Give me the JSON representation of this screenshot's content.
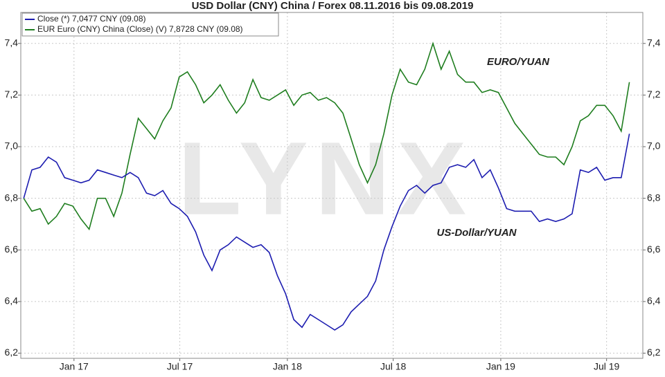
{
  "chart_data": {
    "type": "line",
    "title": "USD Dollar (CNY) China / Forex 08.11.2016 bis 09.08.2019",
    "annotations": [
      "EURO/YUAN",
      "US-Dollar/YUAN"
    ],
    "watermark": "LYNX",
    "x": [
      "2016-10-07",
      "2016-10-21",
      "2016-11-04",
      "2016-11-18",
      "2016-12-02",
      "2016-12-16",
      "2016-12-30",
      "2017-01-13",
      "2017-01-27",
      "2017-02-10",
      "2017-02-24",
      "2017-03-10",
      "2017-03-24",
      "2017-04-07",
      "2017-04-21",
      "2017-05-05",
      "2017-05-19",
      "2017-06-02",
      "2017-06-16",
      "2017-06-30",
      "2017-07-14",
      "2017-07-28",
      "2017-08-11",
      "2017-08-25",
      "2017-09-08",
      "2017-09-22",
      "2017-10-06",
      "2017-10-20",
      "2017-11-03",
      "2017-11-17",
      "2017-12-01",
      "2017-12-15",
      "2017-12-29",
      "2018-01-12",
      "2018-01-26",
      "2018-02-09",
      "2018-02-23",
      "2018-03-09",
      "2018-03-23",
      "2018-04-06",
      "2018-04-20",
      "2018-05-04",
      "2018-05-18",
      "2018-06-01",
      "2018-06-15",
      "2018-06-29",
      "2018-07-13",
      "2018-07-27",
      "2018-08-10",
      "2018-08-24",
      "2018-09-07",
      "2018-09-21",
      "2018-10-05",
      "2018-10-19",
      "2018-11-02",
      "2018-11-16",
      "2018-11-30",
      "2018-12-14",
      "2018-12-28",
      "2019-01-11",
      "2019-01-25",
      "2019-02-08",
      "2019-02-22",
      "2019-03-08",
      "2019-03-22",
      "2019-04-05",
      "2019-04-19",
      "2019-05-03",
      "2019-05-17",
      "2019-05-31",
      "2019-06-14",
      "2019-06-28",
      "2019-07-12",
      "2019-07-26",
      "2019-08-09"
    ],
    "xlim": [
      "2016-10-02",
      "2019-09-01"
    ],
    "xticks": [
      {
        "value": "2017-01-01",
        "label": "Jan 17"
      },
      {
        "value": "2017-07-01",
        "label": "Jul 17"
      },
      {
        "value": "2018-01-01",
        "label": "Jan 18"
      },
      {
        "value": "2018-07-01",
        "label": "Jul 18"
      },
      {
        "value": "2019-01-01",
        "label": "Jan 19"
      },
      {
        "value": "2019-07-01",
        "label": "Jul 19"
      }
    ],
    "ylim": [
      6.18,
      7.52
    ],
    "yticks": [
      {
        "value": 6.2,
        "label": "6,2"
      },
      {
        "value": 6.4,
        "label": "6,4"
      },
      {
        "value": 6.6,
        "label": "6,6"
      },
      {
        "value": 6.8,
        "label": "6,8"
      },
      {
        "value": 7.0,
        "label": "7,0"
      },
      {
        "value": 7.2,
        "label": "7,2"
      },
      {
        "value": 7.4,
        "label": "7,4"
      }
    ],
    "grid": true,
    "legend": "top-left",
    "series": [
      {
        "name": "Close (*) 7,0477 CNY (09.08)",
        "color": "#1c1cb0",
        "values": [
          6.8,
          6.91,
          6.92,
          6.96,
          6.94,
          6.88,
          6.87,
          6.86,
          6.87,
          6.91,
          6.9,
          6.89,
          6.88,
          6.9,
          6.88,
          6.82,
          6.81,
          6.83,
          6.78,
          6.76,
          6.73,
          6.67,
          6.58,
          6.52,
          6.6,
          6.62,
          6.65,
          6.63,
          6.61,
          6.62,
          6.59,
          6.5,
          6.43,
          6.33,
          6.3,
          6.35,
          6.33,
          6.31,
          6.29,
          6.31,
          6.36,
          6.39,
          6.42,
          6.48,
          6.6,
          6.69,
          6.77,
          6.83,
          6.85,
          6.82,
          6.85,
          6.86,
          6.92,
          6.93,
          6.92,
          6.95,
          6.88,
          6.91,
          6.84,
          6.76,
          6.75,
          6.75,
          6.75,
          6.71,
          6.72,
          6.71,
          6.72,
          6.74,
          6.91,
          6.9,
          6.92,
          6.87,
          6.88,
          6.88,
          7.05
        ]
      },
      {
        "name": "EUR Euro (CNY) China (Close) (V) 7,8728 CNY (09.08)",
        "color": "#1e7d1e",
        "values": [
          6.8,
          6.75,
          6.76,
          6.7,
          6.73,
          6.78,
          6.77,
          6.72,
          6.68,
          6.8,
          6.8,
          6.73,
          6.82,
          6.97,
          7.11,
          7.07,
          7.03,
          7.1,
          7.15,
          7.27,
          7.29,
          7.24,
          7.17,
          7.2,
          7.24,
          7.18,
          7.13,
          7.17,
          7.26,
          7.19,
          7.18,
          7.2,
          7.22,
          7.16,
          7.2,
          7.21,
          7.18,
          7.19,
          7.17,
          7.13,
          7.03,
          6.93,
          6.86,
          6.93,
          7.05,
          7.2,
          7.3,
          7.25,
          7.24,
          7.3,
          7.4,
          7.3,
          7.37,
          7.28,
          7.25,
          7.25,
          7.21,
          7.22,
          7.21,
          7.15,
          7.09,
          7.05,
          7.01,
          6.97,
          6.96,
          6.96,
          6.93,
          7.0,
          7.1,
          7.12,
          7.16,
          7.16,
          7.12,
          7.06,
          7.25
        ]
      }
    ]
  }
}
